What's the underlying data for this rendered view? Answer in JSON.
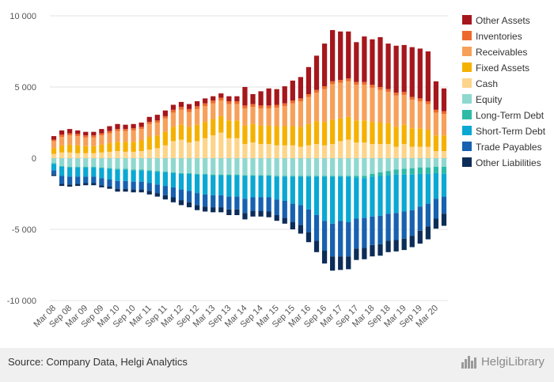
{
  "chart_data": {
    "type": "bar",
    "stacked": true,
    "categories": [
      "Mar 08",
      "Jun 08",
      "Sep 08",
      "Dec 08",
      "Mar 09",
      "Jun 09",
      "Sep 09",
      "Dec 09",
      "Mar 10",
      "Jun 10",
      "Sep 10",
      "Dec 10",
      "Mar 11",
      "Jun 11",
      "Sep 11",
      "Dec 11",
      "Mar 12",
      "Jun 12",
      "Sep 12",
      "Dec 12",
      "Mar 13",
      "Jun 13",
      "Sep 13",
      "Dec 13",
      "Mar 14",
      "Jun 14",
      "Sep 14",
      "Dec 14",
      "Mar 15",
      "Jun 15",
      "Sep 15",
      "Dec 15",
      "Mar 16",
      "Jun 16",
      "Sep 16",
      "Dec 16",
      "Mar 17",
      "Jun 17",
      "Sep 17",
      "Dec 17",
      "Mar 18",
      "Jun 18",
      "Sep 18",
      "Dec 18",
      "Mar 19",
      "Jun 19",
      "Sep 19",
      "Dec 19",
      "Mar 20",
      "Jun 20"
    ],
    "x_tick_labels": [
      "Mar 08",
      "Sep 08",
      "Mar 09",
      "Sep 09",
      "Mar 10",
      "Sep 10",
      "Mar 11",
      "Sep 11",
      "Mar 12",
      "Sep 12",
      "Mar 13",
      "Sep 13",
      "Mar 14",
      "Sep 14",
      "Mar 15",
      "Sep 15",
      "Mar 16",
      "Sep 16",
      "Mar 17",
      "Sep 17",
      "Mar 18",
      "Sep 18",
      "Mar 19",
      "Sep 19",
      "Mar 20"
    ],
    "ylim": [
      -10000,
      10000
    ],
    "y_ticks": [
      {
        "value": 10000,
        "label": "10 000"
      },
      {
        "value": 5000,
        "label": "5 000"
      },
      {
        "value": 0,
        "label": "0"
      },
      {
        "value": -5000,
        "label": "-5 000"
      },
      {
        "value": -10000,
        "label": "-10 000"
      }
    ],
    "grid": true,
    "legend_position": "right",
    "series": [
      {
        "name": "Cash",
        "side": "asset",
        "color": "#fdd58a",
        "values": [
          300,
          400,
          400,
          350,
          350,
          350,
          400,
          450,
          500,
          450,
          450,
          500,
          600,
          700,
          900,
          1200,
          1300,
          1100,
          1200,
          1400,
          1600,
          1800,
          1400,
          1400,
          1000,
          1100,
          1000,
          1000,
          900,
          900,
          900,
          800,
          900,
          1000,
          900,
          1000,
          1200,
          1300,
          1100,
          1100,
          1000,
          1000,
          1000,
          800,
          1000,
          800,
          800,
          800,
          500,
          500
        ]
      },
      {
        "name": "Fixed Assets",
        "side": "asset",
        "color": "#f5b100",
        "values": [
          400,
          500,
          550,
          550,
          500,
          500,
          550,
          600,
          650,
          700,
          700,
          750,
          900,
          900,
          950,
          1000,
          1050,
          1100,
          1150,
          1150,
          1150,
          1150,
          1250,
          1250,
          1300,
          1300,
          1300,
          1300,
          1350,
          1350,
          1350,
          1400,
          1500,
          1600,
          1650,
          1700,
          1600,
          1600,
          1550,
          1550,
          1550,
          1500,
          1450,
          1400,
          1350,
          1300,
          1300,
          1200,
          1100,
          1100
        ]
      },
      {
        "name": "Receivables",
        "side": "asset",
        "color": "#f7a05a",
        "values": [
          500,
          600,
          650,
          650,
          600,
          600,
          650,
          700,
          750,
          750,
          800,
          800,
          900,
          900,
          950,
          1000,
          1050,
          1050,
          1100,
          1100,
          1100,
          1100,
          1150,
          1150,
          1200,
          1200,
          1200,
          1200,
          1300,
          1400,
          1600,
          1800,
          1900,
          2000,
          2300,
          2500,
          2500,
          2500,
          2500,
          2500,
          2400,
          2300,
          2200,
          2200,
          2100,
          2000,
          1900,
          1800,
          1600,
          1500
        ]
      },
      {
        "name": "Inventories",
        "side": "asset",
        "color": "#ee6a2c",
        "values": [
          100,
          150,
          150,
          150,
          150,
          150,
          150,
          150,
          150,
          150,
          150,
          150,
          150,
          150,
          150,
          200,
          200,
          200,
          200,
          200,
          200,
          200,
          200,
          200,
          200,
          200,
          200,
          200,
          200,
          200,
          200,
          200,
          200,
          200,
          200,
          200,
          200,
          200,
          200,
          200,
          200,
          200,
          200,
          200,
          200,
          200,
          200,
          200,
          200,
          200
        ]
      },
      {
        "name": "Other Assets",
        "side": "asset",
        "color": "#a5171c",
        "values": [
          250,
          300,
          300,
          250,
          250,
          250,
          300,
          350,
          350,
          300,
          300,
          300,
          350,
          400,
          400,
          350,
          350,
          350,
          350,
          350,
          300,
          300,
          350,
          350,
          1300,
          700,
          1000,
          1200,
          1100,
          1200,
          1400,
          1500,
          1900,
          2400,
          3000,
          3600,
          3400,
          3300,
          2800,
          3200,
          3200,
          3500,
          3200,
          3300,
          3300,
          3500,
          3500,
          3500,
          2000,
          1600
        ]
      },
      {
        "name": "Equity",
        "side": "liability",
        "color": "#8fd8cf",
        "values": [
          -350,
          -550,
          -600,
          -600,
          -600,
          -600,
          -650,
          -700,
          -750,
          -750,
          -800,
          -800,
          -850,
          -900,
          -950,
          -1000,
          -1050,
          -1050,
          -1100,
          -1100,
          -1150,
          -1150,
          -1150,
          -1150,
          -1200,
          -1200,
          -1200,
          -1200,
          -1250,
          -1250,
          -1250,
          -1250,
          -1250,
          -1250,
          -1250,
          -1250,
          -1250,
          -1250,
          -1250,
          -1250,
          -1100,
          -1000,
          -900,
          -800,
          -750,
          -700,
          -650,
          -650,
          -600,
          -600
        ]
      },
      {
        "name": "Long-Term Debt",
        "side": "liability",
        "color": "#2dbba8",
        "values": [
          -50,
          -50,
          -50,
          -50,
          -50,
          -50,
          -50,
          -50,
          -50,
          -50,
          -50,
          -50,
          -50,
          -50,
          -50,
          -50,
          -50,
          -50,
          -50,
          -50,
          -50,
          -50,
          -50,
          -50,
          -50,
          -50,
          -50,
          -50,
          -50,
          -50,
          -50,
          -50,
          -50,
          -50,
          -50,
          -50,
          -50,
          -50,
          -100,
          -150,
          -200,
          -250,
          -300,
          -350,
          -400,
          -450,
          -450,
          -450,
          -450,
          -500
        ]
      },
      {
        "name": "Short-Term Debt",
        "side": "liability",
        "color": "#0aa8d2",
        "values": [
          -450,
          -650,
          -650,
          -650,
          -650,
          -650,
          -700,
          -750,
          -800,
          -800,
          -800,
          -800,
          -850,
          -900,
          -950,
          -1000,
          -1100,
          -1200,
          -1300,
          -1400,
          -1400,
          -1400,
          -1500,
          -1500,
          -1600,
          -1500,
          -1500,
          -1500,
          -1600,
          -1700,
          -1900,
          -2000,
          -2300,
          -2700,
          -3100,
          -3300,
          -3100,
          -3200,
          -2900,
          -2800,
          -2800,
          -2800,
          -2700,
          -2700,
          -2600,
          -2500,
          -2300,
          -2100,
          -1800,
          -1600
        ]
      },
      {
        "name": "Trade Payables",
        "side": "liability",
        "color": "#1761b0",
        "values": [
          -300,
          -550,
          -550,
          -500,
          -450,
          -450,
          -500,
          -500,
          -550,
          -550,
          -550,
          -550,
          -550,
          -600,
          -650,
          -700,
          -750,
          -800,
          -850,
          -850,
          -850,
          -850,
          -900,
          -900,
          -1000,
          -950,
          -950,
          -1000,
          -1100,
          -1200,
          -1300,
          -1400,
          -1600,
          -1800,
          -2100,
          -2300,
          -2500,
          -2400,
          -2100,
          -2100,
          -2000,
          -2000,
          -1900,
          -1900,
          -1900,
          -1800,
          -1700,
          -1600,
          -1400,
          -1200
        ]
      },
      {
        "name": "Other Liabilities",
        "side": "liability",
        "color": "#0c2d57",
        "values": [
          -100,
          -150,
          -150,
          -150,
          -150,
          -150,
          -150,
          -150,
          -200,
          -200,
          -200,
          -200,
          -250,
          -250,
          -300,
          -350,
          -350,
          -350,
          -350,
          -350,
          -350,
          -350,
          -400,
          -400,
          -450,
          -400,
          -400,
          -400,
          -400,
          -400,
          -500,
          -600,
          -700,
          -800,
          -900,
          -1000,
          -950,
          -900,
          -800,
          -800,
          -800,
          -800,
          -800,
          -800,
          -800,
          -800,
          -900,
          -900,
          -700,
          -850
        ]
      }
    ],
    "legend_order": [
      "Other Assets",
      "Inventories",
      "Receivables",
      "Fixed Assets",
      "Cash",
      "Equity",
      "Long-Term Debt",
      "Short-Term Debt",
      "Trade Payables",
      "Other Liabilities"
    ]
  },
  "footer": {
    "source": "Source: Company Data, Helgi Analytics",
    "brand": "HelgiLibrary"
  }
}
